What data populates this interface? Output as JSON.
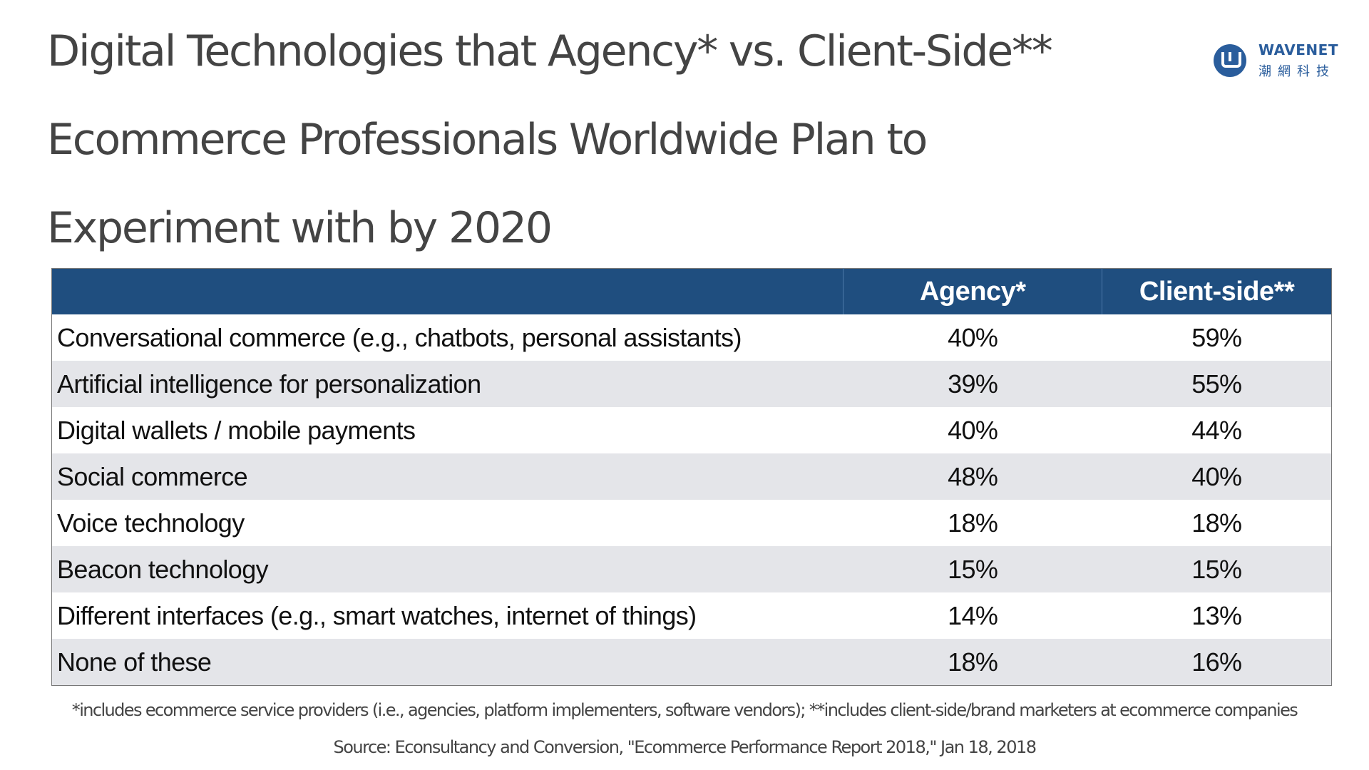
{
  "title": {
    "lines": [
      "Digital Technologies that Agency* vs. Client-Side**",
      "Ecommerce Professionals Worldwide Plan to",
      "Experiment with by 2020"
    ]
  },
  "logo": {
    "icon": "wavenet-logo-icon",
    "name": "WAVENET",
    "chinese_name": "潮網科技",
    "color": "#2a5d9c"
  },
  "table": {
    "header_color": "#1f4e7f",
    "columns": [
      "",
      "Agency*",
      "Client-side**"
    ],
    "rows": [
      {
        "label": "Conversational commerce (e.g., chatbots, personal assistants)",
        "agency": "40%",
        "client_side": "59%"
      },
      {
        "label": "Artificial intelligence for personalization",
        "agency": "39%",
        "client_side": "55%"
      },
      {
        "label": "Digital wallets / mobile payments",
        "agency": "40%",
        "client_side": "44%"
      },
      {
        "label": "Social commerce",
        "agency": "48%",
        "client_side": "40%"
      },
      {
        "label": "Voice technology",
        "agency": "18%",
        "client_side": "18%"
      },
      {
        "label": "Beacon technology",
        "agency": "15%",
        "client_side": "15%"
      },
      {
        "label": "Different interfaces (e.g., smart watches, internet of things)",
        "agency": "14%",
        "client_side": "13%"
      },
      {
        "label": "None of these",
        "agency": "18%",
        "client_side": "16%"
      }
    ]
  },
  "footnote": "*includes ecommerce service providers (i.e., agencies, platform implementers, software vendors); **includes client-side/brand marketers at ecommerce companies",
  "source": "Source: Econsultancy and Conversion, \"Ecommerce Performance Report 2018,\" Jan 18, 2018",
  "chart_data": {
    "type": "table",
    "title": "Digital Technologies that Agency* vs. Client-Side** Ecommerce Professionals Worldwide Plan to Experiment with by 2020",
    "categories": [
      "Conversational commerce (e.g., chatbots, personal assistants)",
      "Artificial intelligence for personalization",
      "Digital wallets / mobile payments",
      "Social commerce",
      "Voice technology",
      "Beacon technology",
      "Different interfaces (e.g., smart watches, internet of things)",
      "None of these"
    ],
    "series": [
      {
        "name": "Agency*",
        "values": [
          40,
          39,
          40,
          48,
          18,
          15,
          14,
          18
        ]
      },
      {
        "name": "Client-side**",
        "values": [
          59,
          55,
          44,
          40,
          18,
          15,
          13,
          16
        ]
      }
    ],
    "unit": "%"
  }
}
